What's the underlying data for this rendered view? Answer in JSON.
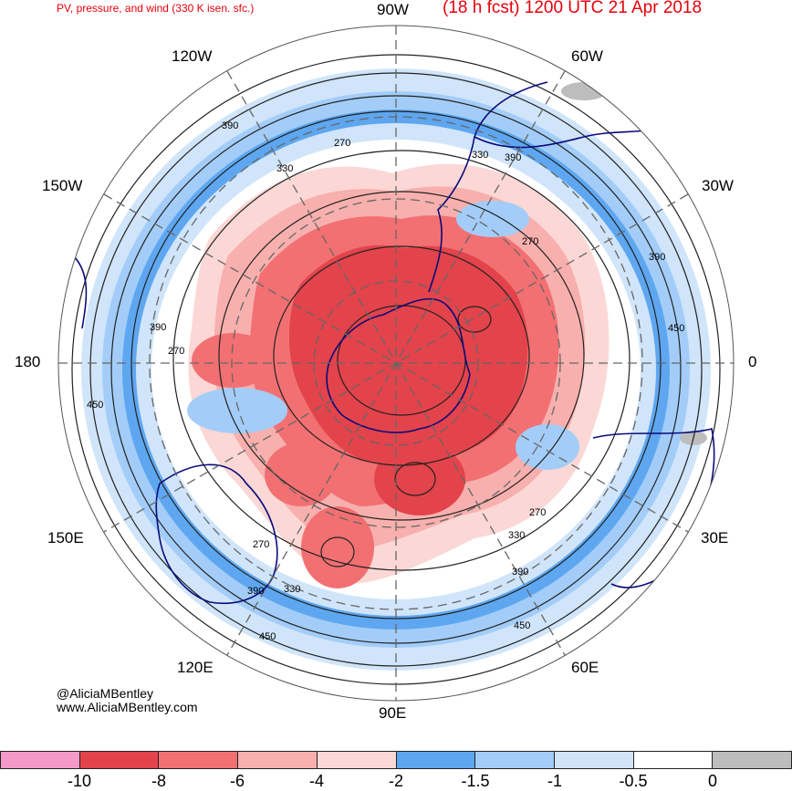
{
  "header": {
    "left_title": "PV, pressure, and wind (330 K isen. sfc.)",
    "right_title": "(18 h fcst) 1200 UTC 21 Apr 2018"
  },
  "longitudes": {
    "lon_90w": "90W",
    "lon_60w": "60W",
    "lon_30w": "30W",
    "lon_0": "0",
    "lon_30e": "30E",
    "lon_60e": "60E",
    "lon_90e": "90E",
    "lon_120e": "120E",
    "lon_150e": "150E",
    "lon_180": "180",
    "lon_150w": "150W",
    "lon_120w": "120W"
  },
  "contour_labels": [
    "390",
    "270",
    "330",
    "330",
    "390",
    "270",
    "390",
    "450",
    "390",
    "270",
    "450",
    "270",
    "330",
    "390",
    "450",
    "270",
    "390",
    "330",
    "450"
  ],
  "credits": {
    "twitter": "@AliciaMBentley",
    "website": "www.AliciaMBentley.com"
  },
  "colorbar": {
    "colors": [
      "#f59ac8",
      "#e3434b",
      "#f27072",
      "#f7b0ae",
      "#fbd8d5",
      "#5ea7f0",
      "#a3cdf8",
      "#d0e5fa",
      "#ffffff",
      "#bdbdbd"
    ],
    "ticks": [
      "-10",
      "-8",
      "-6",
      "-4",
      "-2",
      "-1.5",
      "-1",
      "-0.5",
      "0"
    ]
  }
}
